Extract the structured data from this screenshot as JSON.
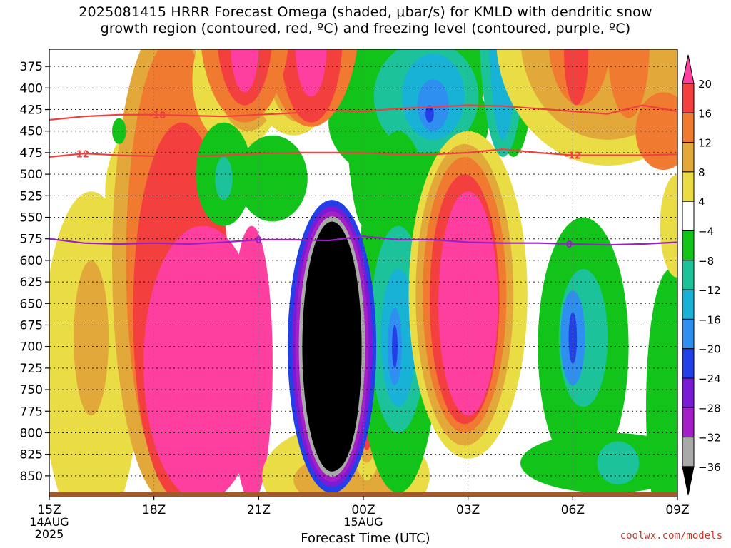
{
  "header": {
    "title_line1": "2025081415 HRRR Forecast Omega (shaded, μbar/s) for KMLD with dendritic snow",
    "title_line2": "growth region (contoured, red, ºC) and freezing level (contoured, purple, ºC)"
  },
  "footer": {
    "xlabel": "Forecast Time (UTC)",
    "credit": "coolwx.com/models"
  },
  "chart_data": {
    "type": "heatmap",
    "title": "2025081415 HRRR Forecast Omega (shaded, μbar/s) for KMLD with dendritic snow growth region (contoured, red, ºC) and freezing level (contoured, purple, ºC)",
    "xlabel": "Forecast Time (UTC)",
    "ylabel": "",
    "x_ticks": [
      {
        "label": "15Z",
        "sub": [
          "14AUG",
          "2025"
        ],
        "hour": 15
      },
      {
        "label": "18Z",
        "sub": [],
        "hour": 18
      },
      {
        "label": "21Z",
        "sub": [],
        "hour": 21
      },
      {
        "label": "00Z",
        "sub": [
          "15AUG"
        ],
        "hour": 24
      },
      {
        "label": "03Z",
        "sub": [],
        "hour": 27
      },
      {
        "label": "06Z",
        "sub": [],
        "hour": 30
      },
      {
        "label": "09Z",
        "sub": [],
        "hour": 33
      }
    ],
    "x_range_hours": [
      15,
      33
    ],
    "y_ticks": [
      375,
      400,
      425,
      450,
      475,
      500,
      525,
      550,
      575,
      600,
      625,
      650,
      675,
      700,
      725,
      750,
      775,
      800,
      825,
      850
    ],
    "y_range_hpa": [
      355,
      870
    ],
    "grid": true,
    "colorbar": {
      "labels": [
        "20",
        "16",
        "12",
        "8",
        "4",
        "−4",
        "−8",
        "−12",
        "−16",
        "−20",
        "−24",
        "−28",
        "−32",
        "−36"
      ],
      "colors": [
        "#ff3fa0",
        "#f43f3f",
        "#f07a30",
        "#e3a83a",
        "#eadc45",
        "#ffffff",
        "#12c41a",
        "#1cc39a",
        "#17b2d6",
        "#2e8ff0",
        "#2340e8",
        "#7a1bd6",
        "#a51fc6",
        "#a9a9a9",
        "#000000"
      ]
    },
    "contours": [
      {
        "name": "-18",
        "color": "#ef4040",
        "label_hours": [
          18.1
        ],
        "points": [
          [
            15,
            437
          ],
          [
            16,
            433
          ],
          [
            17,
            431
          ],
          [
            18,
            431
          ],
          [
            19,
            432
          ],
          [
            20,
            433
          ],
          [
            21,
            431
          ],
          [
            22,
            429
          ],
          [
            23,
            426
          ],
          [
            24,
            427
          ],
          [
            25,
            424
          ],
          [
            26,
            422
          ],
          [
            27,
            420
          ],
          [
            28,
            421
          ],
          [
            29,
            424
          ],
          [
            30,
            427
          ],
          [
            31,
            430
          ],
          [
            32,
            420
          ],
          [
            33,
            427
          ]
        ]
      },
      {
        "name": "-12",
        "color": "#ef4040",
        "label_hours": [
          15.9,
          30.0
        ],
        "points": [
          [
            15,
            480
          ],
          [
            16,
            476
          ],
          [
            17,
            478
          ],
          [
            18,
            479
          ],
          [
            19,
            479
          ],
          [
            20,
            478
          ],
          [
            21,
            476
          ],
          [
            22,
            475
          ],
          [
            23,
            475
          ],
          [
            24,
            475
          ],
          [
            25,
            477
          ],
          [
            26,
            477
          ],
          [
            27,
            475
          ],
          [
            28,
            471
          ],
          [
            29,
            475
          ],
          [
            30,
            478
          ],
          [
            31,
            478
          ],
          [
            32,
            478
          ],
          [
            33,
            477
          ]
        ]
      },
      {
        "name": "0",
        "color": "#9a1fc8",
        "label_hours": [
          21.0,
          29.9
        ],
        "points": [
          [
            15,
            575
          ],
          [
            16,
            580
          ],
          [
            17,
            581
          ],
          [
            18,
            580
          ],
          [
            19,
            581
          ],
          [
            20,
            579
          ],
          [
            21,
            576
          ],
          [
            22,
            576
          ],
          [
            23,
            577
          ],
          [
            24,
            572
          ],
          [
            25,
            576
          ],
          [
            26,
            576
          ],
          [
            27,
            579
          ],
          [
            28,
            580
          ],
          [
            29,
            580
          ],
          [
            30,
            581
          ],
          [
            31,
            582
          ],
          [
            32,
            581
          ],
          [
            33,
            579
          ]
        ]
      }
    ],
    "cells": [
      {
        "h": 16.2,
        "p": 720,
        "rx": 1.4,
        "ry": 200,
        "color": "#eadc45"
      },
      {
        "h": 16.2,
        "p": 690,
        "rx": 0.5,
        "ry": 90,
        "color": "#e3a83a"
      },
      {
        "h": 18.0,
        "p": 300,
        "rx": 0.4,
        "ry": 110,
        "color": "#eadc45"
      },
      {
        "h": 18.0,
        "p": 365,
        "rx": 0.35,
        "ry": 100,
        "color": "#e3a83a"
      },
      {
        "h": 18.2,
        "p": 520,
        "rx": 1.6,
        "ry": 90,
        "color": "#eadc45"
      },
      {
        "h": 18.4,
        "p": 600,
        "rx": 1.6,
        "ry": 280,
        "color": "#e3a83a"
      },
      {
        "h": 18.6,
        "p": 600,
        "rx": 1.4,
        "ry": 260,
        "color": "#f07a30"
      },
      {
        "h": 18.8,
        "p": 660,
        "rx": 1.4,
        "ry": 220,
        "color": "#f43f3f"
      },
      {
        "h": 19.4,
        "p": 720,
        "rx": 1.7,
        "ry": 160,
        "color": "#ff3fa0"
      },
      {
        "h": 20.8,
        "p": 720,
        "rx": 0.6,
        "ry": 160,
        "color": "#ff3fa0"
      },
      {
        "h": 20.4,
        "p": 390,
        "rx": 1.3,
        "ry": 80,
        "color": "#eadc45"
      },
      {
        "h": 20.7,
        "p": 385,
        "rx": 0.9,
        "ry": 65,
        "color": "#e3a83a"
      },
      {
        "h": 20.9,
        "p": 380,
        "rx": 0.6,
        "ry": 55,
        "color": "#f07a30"
      },
      {
        "h": 20.9,
        "p": 385,
        "rx": 0.35,
        "ry": 45,
        "color": "#f43f3f"
      },
      {
        "h": 21.0,
        "p": 380,
        "rx": 0.25,
        "ry": 40,
        "color": "#ff3fa0"
      },
      {
        "h": 22.0,
        "p": 380,
        "rx": 1.2,
        "ry": 75,
        "color": "#eadc45"
      },
      {
        "h": 22.2,
        "p": 380,
        "rx": 0.9,
        "ry": 60,
        "color": "#e3a83a"
      },
      {
        "h": 22.2,
        "p": 380,
        "rx": 0.6,
        "ry": 50,
        "color": "#f07a30"
      },
      {
        "h": 22.2,
        "p": 380,
        "rx": 0.35,
        "ry": 45,
        "color": "#f43f3f"
      },
      {
        "h": 22.2,
        "p": 380,
        "rx": 0.25,
        "ry": 35,
        "color": "#ff3fa0"
      },
      {
        "h": 24.0,
        "p": 300,
        "rx": 0.6,
        "ry": 260,
        "color": "#12c41a"
      },
      {
        "h": 21.4,
        "p": 505,
        "rx": 1.0,
        "ry": 50,
        "color": "#12c41a"
      },
      {
        "h": 20.0,
        "p": 500,
        "rx": 0.8,
        "ry": 60,
        "color": "#12c41a"
      },
      {
        "h": 20.0,
        "p": 505,
        "rx": 0.25,
        "ry": 25,
        "color": "#1cc39a"
      },
      {
        "h": 25.3,
        "p": 440,
        "rx": 2.3,
        "ry": 70,
        "color": "#12c41a"
      },
      {
        "h": 26.0,
        "p": 360,
        "rx": 1.5,
        "ry": 150,
        "color": "#12c41a"
      },
      {
        "h": 25.8,
        "p": 410,
        "rx": 1.5,
        "ry": 65,
        "color": "#1cc39a"
      },
      {
        "h": 26.0,
        "p": 410,
        "rx": 0.9,
        "ry": 50,
        "color": "#17b2d6"
      },
      {
        "h": 26.0,
        "p": 420,
        "rx": 0.45,
        "ry": 30,
        "color": "#2e8ff0"
      },
      {
        "h": 25.9,
        "p": 430,
        "rx": 0.12,
        "ry": 10,
        "color": "#2340e8"
      },
      {
        "h": 17.0,
        "p": 450,
        "rx": 0.2,
        "ry": 15,
        "color": "#12c41a"
      },
      {
        "h": 23.5,
        "p": 850,
        "rx": 2.4,
        "ry": 60,
        "color": "#eadc45"
      },
      {
        "h": 23.5,
        "p": 855,
        "rx": 1.5,
        "ry": 30,
        "color": "#e3a83a"
      },
      {
        "h": 24.1,
        "p": 775,
        "rx": 0.5,
        "ry": 80,
        "color": "#eadc45"
      },
      {
        "h": 24.1,
        "p": 790,
        "rx": 0.3,
        "ry": 45,
        "color": "#e3a83a"
      },
      {
        "h": 24.1,
        "p": 800,
        "rx": 0.15,
        "ry": 20,
        "color": "#f43f3f"
      },
      {
        "h": 25.0,
        "p": 660,
        "rx": 1.2,
        "ry": 210,
        "color": "#12c41a"
      },
      {
        "h": 25.0,
        "p": 680,
        "rx": 0.8,
        "ry": 120,
        "color": "#1cc39a"
      },
      {
        "h": 25.0,
        "p": 690,
        "rx": 0.5,
        "ry": 80,
        "color": "#17b2d6"
      },
      {
        "h": 24.9,
        "p": 700,
        "rx": 0.2,
        "ry": 45,
        "color": "#2e8ff0"
      },
      {
        "h": 24.9,
        "p": 700,
        "rx": 0.08,
        "ry": 25,
        "color": "#2340e8"
      },
      {
        "h": 27.0,
        "p": 640,
        "rx": 1.7,
        "ry": 190,
        "color": "#eadc45"
      },
      {
        "h": 26.9,
        "p": 640,
        "rx": 1.4,
        "ry": 175,
        "color": "#e3a83a"
      },
      {
        "h": 26.9,
        "p": 640,
        "rx": 1.2,
        "ry": 160,
        "color": "#f07a30"
      },
      {
        "h": 26.9,
        "p": 645,
        "rx": 1.0,
        "ry": 145,
        "color": "#f43f3f"
      },
      {
        "h": 27.0,
        "p": 650,
        "rx": 0.85,
        "ry": 130,
        "color": "#ff3fa0"
      },
      {
        "h": 28.3,
        "p": 250,
        "rx": 0.8,
        "ry": 230,
        "color": "#12c41a"
      },
      {
        "h": 28.0,
        "p": 300,
        "rx": 0.7,
        "ry": 180,
        "color": "#1cc39a"
      },
      {
        "h": 28.0,
        "p": 320,
        "rx": 0.4,
        "ry": 140,
        "color": "#17b2d6"
      },
      {
        "h": 22.5,
        "p": 310,
        "rx": 1.4,
        "ry": 135,
        "color": "#f07a30"
      },
      {
        "h": 22.5,
        "p": 340,
        "rx": 0.9,
        "ry": 100,
        "color": "#f43f3f"
      },
      {
        "h": 22.5,
        "p": 350,
        "rx": 0.45,
        "ry": 60,
        "color": "#ff3fa0"
      },
      {
        "h": 20.6,
        "p": 320,
        "rx": 1.3,
        "ry": 120,
        "color": "#f07a30"
      },
      {
        "h": 20.6,
        "p": 330,
        "rx": 0.8,
        "ry": 90,
        "color": "#f43f3f"
      },
      {
        "h": 20.6,
        "p": 350,
        "rx": 0.4,
        "ry": 55,
        "color": "#ff3fa0"
      },
      {
        "h": 31.0,
        "p": 340,
        "rx": 3.2,
        "ry": 150,
        "color": "#eadc45"
      },
      {
        "h": 31.0,
        "p": 340,
        "rx": 2.5,
        "ry": 120,
        "color": "#e3a83a"
      },
      {
        "h": 30.2,
        "p": 340,
        "rx": 0.9,
        "ry": 80,
        "color": "#f07a30"
      },
      {
        "h": 30.1,
        "p": 360,
        "rx": 0.35,
        "ry": 60,
        "color": "#f43f3f"
      },
      {
        "h": 31.6,
        "p": 350,
        "rx": 0.6,
        "ry": 85,
        "color": "#f07a30"
      },
      {
        "h": 32.6,
        "p": 450,
        "rx": 0.8,
        "ry": 45,
        "color": "#f07a30"
      },
      {
        "h": 30.3,
        "p": 700,
        "rx": 1.3,
        "ry": 150,
        "color": "#12c41a"
      },
      {
        "h": 30.3,
        "p": 690,
        "rx": 0.7,
        "ry": 80,
        "color": "#1cc39a"
      },
      {
        "h": 30.0,
        "p": 690,
        "rx": 0.35,
        "ry": 55,
        "color": "#2e8ff0"
      },
      {
        "h": 30.0,
        "p": 690,
        "rx": 0.12,
        "ry": 30,
        "color": "#2340e8"
      },
      {
        "h": 31.0,
        "p": 835,
        "rx": 2.5,
        "ry": 35,
        "color": "#12c41a"
      },
      {
        "h": 31.3,
        "p": 835,
        "rx": 0.6,
        "ry": 25,
        "color": "#1cc39a"
      },
      {
        "h": 32.8,
        "p": 770,
        "rx": 0.7,
        "ry": 160,
        "color": "#12c41a"
      },
      {
        "h": 33.0,
        "p": 560,
        "rx": 0.5,
        "ry": 60,
        "color": "#eadc45"
      }
    ],
    "black_core": {
      "h": 23.1,
      "p": 700,
      "rx": 0.85,
      "ry": 145
    }
  }
}
